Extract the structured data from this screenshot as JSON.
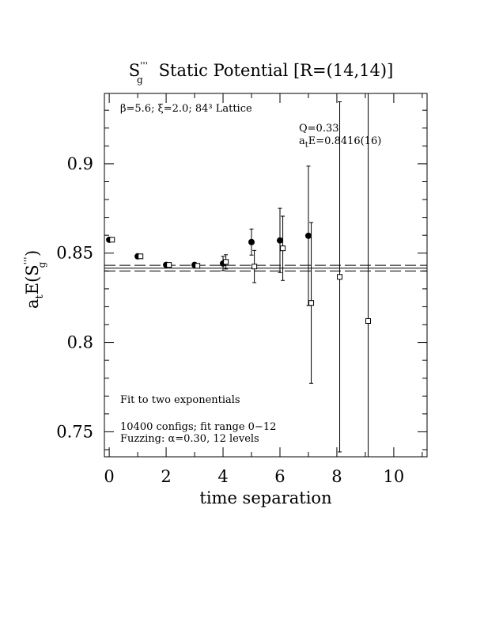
{
  "chart_data": {
    "type": "scatter",
    "title": {
      "symbol": "S",
      "sup": "'''",
      "sub": "g",
      "text": "Static Potential [R=(14,14)]"
    },
    "xlabel": "time separation",
    "ylabel": {
      "a": "a",
      "a_sub": "t",
      "mid": "E(S",
      "sup": "'''",
      "sub": "g",
      "end": " )"
    },
    "annotations": {
      "lattice": "β=5.6; ξ=2.0; 84³ Lattice",
      "q": "Q=0.33",
      "energy": {
        "a": "a",
        "sub": "t",
        "rest": "E=0.8416(16)"
      },
      "fit": "Fit to two exponentials",
      "configs": "10400 configs; fit range 0−12",
      "fuzzing": "Fuzzing: α=0.30, 12 levels"
    },
    "fit": {
      "value": 0.8416,
      "error": 0.0016
    },
    "xlim": [
      -0.17,
      11.17
    ],
    "ylim": [
      0.736,
      0.9394
    ],
    "xticks": [
      0,
      2,
      4,
      6,
      8,
      10
    ],
    "xminorticks": [
      1,
      3,
      5,
      7,
      9,
      11
    ],
    "yticks": [
      0.75,
      0.8,
      0.85,
      0.9
    ],
    "yminorticks": [
      0.74,
      0.76,
      0.77,
      0.78,
      0.79,
      0.81,
      0.82,
      0.83,
      0.84,
      0.86,
      0.87,
      0.88,
      0.89,
      0.91,
      0.92,
      0.93
    ],
    "series": [
      {
        "marker": "circle",
        "color": "#000000",
        "x": [
          0,
          1,
          2,
          3,
          4,
          5,
          6,
          7
        ],
        "values": [
          0.8575,
          0.8482,
          0.8434,
          0.8434,
          0.8442,
          0.8562,
          0.8571,
          0.8597
        ],
        "errors": [
          0.001,
          0.001,
          0.001,
          0.001,
          0.004,
          0.0073,
          0.018,
          0.039
        ]
      },
      {
        "marker": "square",
        "color": "#000000",
        "x": [
          0.1,
          1.1,
          2.1,
          3.1,
          4.1,
          5.1,
          6.1,
          7.1,
          8.1,
          9.1
        ],
        "values": [
          0.8575,
          0.8482,
          0.8434,
          0.8429,
          0.8451,
          0.8425,
          0.8527,
          0.8221,
          0.8367,
          0.812
        ],
        "errors": [
          0.001,
          0.001,
          0.001,
          0.001,
          0.004,
          0.009,
          0.018,
          0.045,
          0.098,
          0.13
        ]
      }
    ]
  }
}
